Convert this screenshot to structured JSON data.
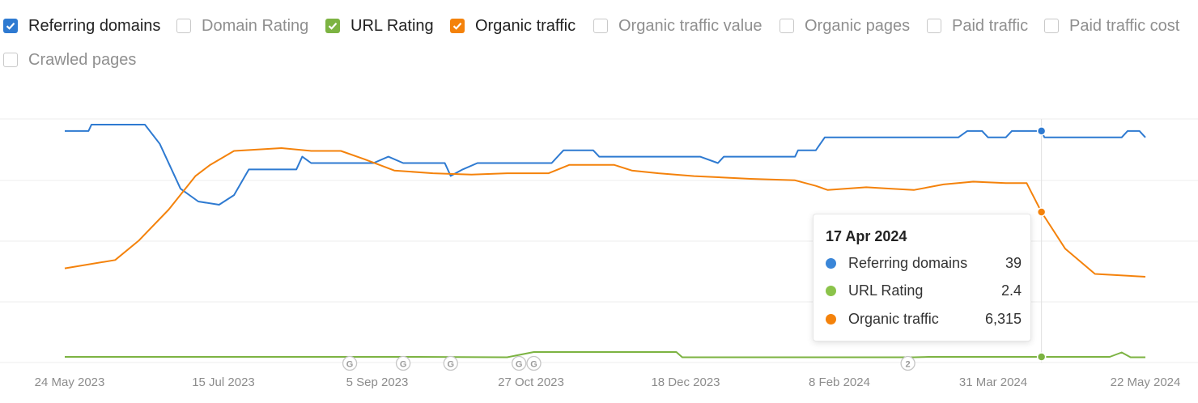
{
  "legend": {
    "items": [
      {
        "label": "Referring domains",
        "checked": true,
        "color": "#2e7ad1"
      },
      {
        "label": "Domain Rating",
        "checked": false
      },
      {
        "label": "URL Rating",
        "checked": true,
        "color": "#7cb342"
      },
      {
        "label": "Organic traffic",
        "checked": true,
        "color": "#f4820b"
      },
      {
        "label": "Organic traffic value",
        "checked": false
      },
      {
        "label": "Organic pages",
        "checked": false
      },
      {
        "label": "Paid traffic",
        "checked": false
      },
      {
        "label": "Paid traffic cost",
        "checked": false
      },
      {
        "label": "Crawled pages",
        "checked": false
      }
    ]
  },
  "tooltip": {
    "date": "17 Apr 2024",
    "rows": [
      {
        "name": "Referring domains",
        "value": "39",
        "color": "#3a86d8"
      },
      {
        "name": "URL Rating",
        "value": "2.4",
        "color": "#8bc34a"
      },
      {
        "name": "Organic traffic",
        "value": "6,315",
        "color": "#f4820b"
      }
    ]
  },
  "chart_data": {
    "type": "line",
    "x_ticks": [
      "24 May 2023",
      "15 Jul 2023",
      "5 Sep 2023",
      "27 Oct 2023",
      "18 Dec 2023",
      "8 Feb 2024",
      "31 Mar 2024",
      "22 May 2024"
    ],
    "x_range": [
      "2023-05-24",
      "2024-05-22"
    ],
    "grid": "horizontal",
    "series": [
      {
        "name": "Referring domains",
        "color": "#2e7ad1",
        "points": [
          [
            "2023-05-24",
            39
          ],
          [
            "2023-06-01",
            39
          ],
          [
            "2023-06-02",
            40
          ],
          [
            "2023-06-20",
            40
          ],
          [
            "2023-06-25",
            37
          ],
          [
            "2023-07-02",
            30
          ],
          [
            "2023-07-08",
            28
          ],
          [
            "2023-07-15",
            27.5
          ],
          [
            "2023-07-20",
            29
          ],
          [
            "2023-07-25",
            33
          ],
          [
            "2023-08-10",
            33
          ],
          [
            "2023-08-12",
            35
          ],
          [
            "2023-08-15",
            34
          ],
          [
            "2023-09-05",
            34
          ],
          [
            "2023-09-10",
            35
          ],
          [
            "2023-09-15",
            34
          ],
          [
            "2023-09-29",
            34
          ],
          [
            "2023-10-01",
            32
          ],
          [
            "2023-10-05",
            33
          ],
          [
            "2023-10-10",
            34
          ],
          [
            "2023-11-04",
            34
          ],
          [
            "2023-11-08",
            36
          ],
          [
            "2023-11-18",
            36
          ],
          [
            "2023-11-20",
            35
          ],
          [
            "2023-12-24",
            35
          ],
          [
            "2023-12-30",
            34
          ],
          [
            "2024-01-01",
            35
          ],
          [
            "2024-01-25",
            35
          ],
          [
            "2024-01-26",
            36
          ],
          [
            "2024-02-01",
            36
          ],
          [
            "2024-02-04",
            38
          ],
          [
            "2024-03-20",
            38
          ],
          [
            "2024-03-23",
            39
          ],
          [
            "2024-03-28",
            39
          ],
          [
            "2024-03-30",
            38
          ],
          [
            "2024-04-05",
            38
          ],
          [
            "2024-04-07",
            39
          ],
          [
            "2024-04-17",
            39
          ],
          [
            "2024-04-18",
            38
          ],
          [
            "2024-05-14",
            38
          ],
          [
            "2024-05-16",
            39
          ],
          [
            "2024-05-20",
            39
          ],
          [
            "2024-05-22",
            38
          ]
        ]
      },
      {
        "name": "URL Rating",
        "color": "#7cb342",
        "points": [
          [
            "2023-05-24",
            2.4
          ],
          [
            "2023-06-20",
            2.4
          ],
          [
            "2023-07-15",
            2.4
          ],
          [
            "2023-08-28",
            2.4
          ],
          [
            "2023-09-20",
            2.4
          ],
          [
            "2023-10-20",
            2.3
          ],
          [
            "2023-10-29",
            3.5
          ],
          [
            "2023-12-16",
            3.5
          ],
          [
            "2023-12-18",
            2.3
          ],
          [
            "2024-02-15",
            2.3
          ],
          [
            "2024-03-05",
            2.3
          ],
          [
            "2024-03-10",
            2.4
          ],
          [
            "2024-04-17",
            2.4
          ],
          [
            "2024-05-10",
            2.4
          ],
          [
            "2024-05-14",
            3.4
          ],
          [
            "2024-05-17",
            2.3
          ],
          [
            "2024-05-22",
            2.3
          ]
        ]
      },
      {
        "name": "Organic traffic",
        "color": "#f4820b",
        "points": [
          [
            "2023-05-24",
            4300
          ],
          [
            "2023-06-10",
            4600
          ],
          [
            "2023-06-18",
            5300
          ],
          [
            "2023-06-28",
            6400
          ],
          [
            "2023-07-07",
            7600
          ],
          [
            "2023-07-12",
            8000
          ],
          [
            "2023-07-20",
            8500
          ],
          [
            "2023-08-05",
            8600
          ],
          [
            "2023-08-15",
            8500
          ],
          [
            "2023-08-25",
            8500
          ],
          [
            "2023-09-02",
            8200
          ],
          [
            "2023-09-12",
            7800
          ],
          [
            "2023-09-25",
            7700
          ],
          [
            "2023-10-08",
            7650
          ],
          [
            "2023-10-20",
            7700
          ],
          [
            "2023-11-03",
            7700
          ],
          [
            "2023-11-10",
            8000
          ],
          [
            "2023-11-25",
            8000
          ],
          [
            "2023-12-01",
            7800
          ],
          [
            "2023-12-10",
            7700
          ],
          [
            "2023-12-22",
            7600
          ],
          [
            "2024-01-10",
            7500
          ],
          [
            "2024-01-25",
            7450
          ],
          [
            "2024-02-01",
            7250
          ],
          [
            "2024-02-05",
            7100
          ],
          [
            "2024-02-18",
            7200
          ],
          [
            "2024-02-26",
            7150
          ],
          [
            "2024-03-05",
            7100
          ],
          [
            "2024-03-15",
            7300
          ],
          [
            "2024-03-25",
            7400
          ],
          [
            "2024-04-05",
            7350
          ],
          [
            "2024-04-12",
            7350
          ],
          [
            "2024-04-17",
            6315
          ],
          [
            "2024-04-25",
            5000
          ],
          [
            "2024-05-05",
            4100
          ],
          [
            "2024-05-22",
            4000
          ]
        ]
      }
    ]
  }
}
